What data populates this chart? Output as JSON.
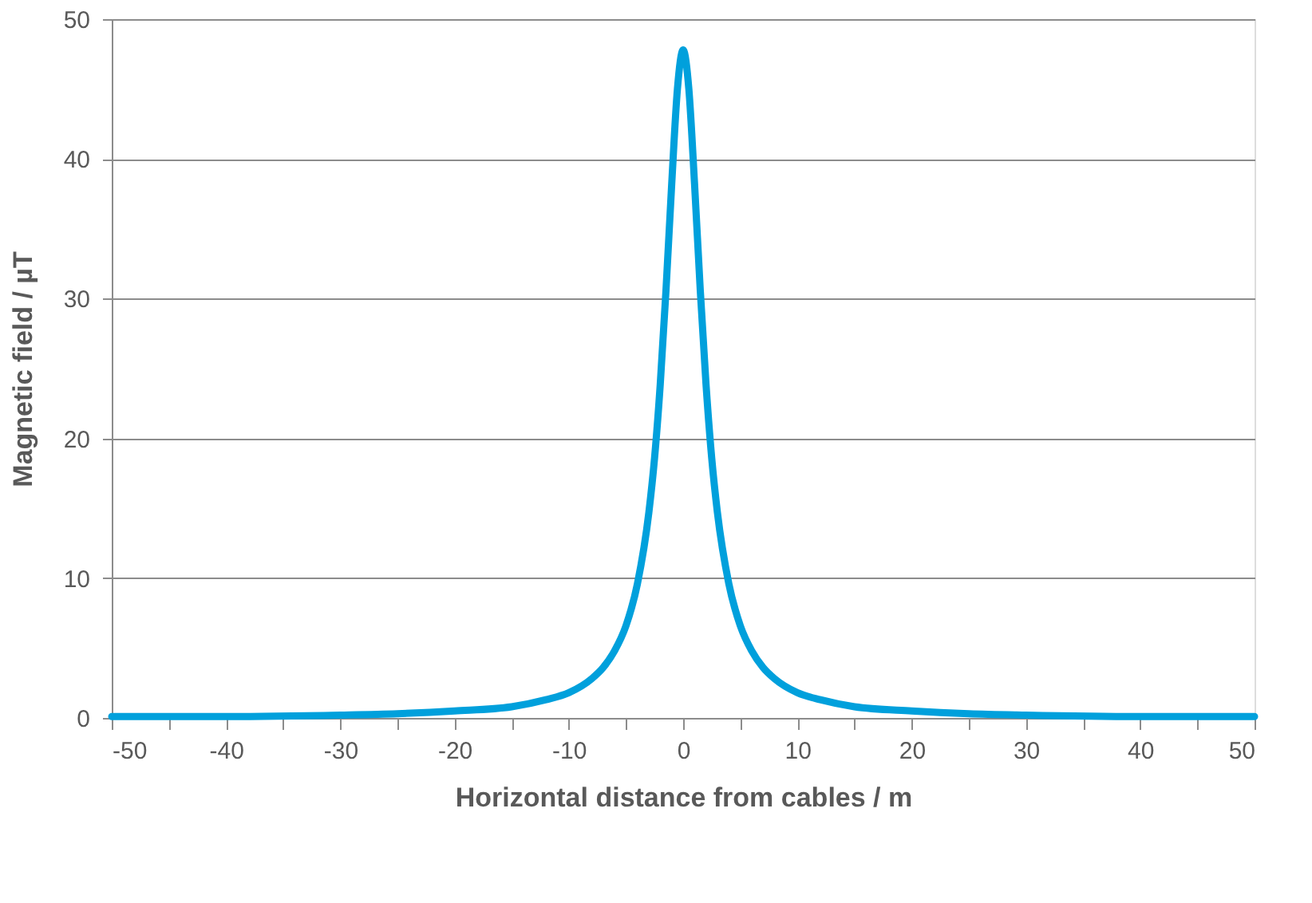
{
  "chart_data": {
    "type": "line",
    "xlabel": "Horizontal distance from cables / m",
    "ylabel": "Magnetic field / µT",
    "x": [
      -50,
      -40,
      -30,
      -25,
      -20,
      -15,
      -12,
      -10,
      -8,
      -7,
      -6,
      -5,
      -4,
      -3,
      -2.5,
      -2,
      -1.5,
      -1,
      -0.5,
      0,
      0.5,
      1,
      1.5,
      2,
      2.5,
      3,
      4,
      5,
      6,
      7,
      8,
      10,
      12,
      15,
      20,
      25,
      30,
      40,
      50
    ],
    "series": [
      {
        "color": "#00a0dc",
        "values": [
          0.1,
          0.1,
          0.2,
          0.3,
          0.5,
          0.8,
          1.3,
          1.8,
          2.8,
          3.6,
          4.8,
          6.6,
          9.6,
          14.7,
          18.6,
          23.9,
          30.6,
          38.2,
          45.0,
          47.8,
          45.0,
          38.2,
          30.6,
          23.9,
          18.6,
          14.7,
          9.6,
          6.6,
          4.8,
          3.6,
          2.8,
          1.8,
          1.3,
          0.8,
          0.5,
          0.3,
          0.2,
          0.1,
          0.1
        ]
      }
    ],
    "xlim": [
      -50,
      50
    ],
    "ylim": [
      0,
      50
    ],
    "xticks": [
      -50,
      {
        "value": -45,
        "label": null
      },
      -40,
      {
        "value": -35,
        "label": null
      },
      -30,
      {
        "value": -25,
        "label": null
      },
      -20,
      {
        "value": -15,
        "label": null
      },
      -10,
      {
        "value": -5,
        "label": null
      },
      0,
      {
        "value": 5,
        "label": null
      },
      10,
      {
        "value": 15,
        "label": null
      },
      20,
      {
        "value": 25,
        "label": null
      },
      30,
      {
        "value": 35,
        "label": null
      },
      40,
      {
        "value": 45,
        "label": null
      },
      50
    ],
    "yticks": [
      0,
      10,
      20,
      30,
      40,
      50
    ],
    "grid": "y",
    "marker": "none",
    "line_style": "solid"
  }
}
